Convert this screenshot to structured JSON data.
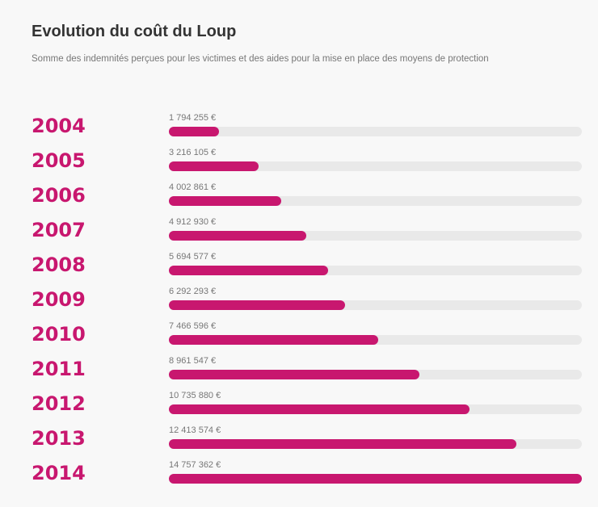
{
  "header": {
    "title": "Evolution du coût du Loup",
    "subtitle": "Somme des indemnités perçues pour les victimes et des aides pour la mise en place des moyens de protection"
  },
  "colors": {
    "bar": "#c8176f",
    "track": "#e9e9e9",
    "year": "#c8176f"
  },
  "chart_data": {
    "type": "bar",
    "orientation": "horizontal",
    "title": "Evolution du coût du Loup",
    "subtitle": "Somme des indemnités perçues pour les victimes et des aides pour la mise en place des moyens de protection",
    "categories": [
      "2004",
      "2005",
      "2006",
      "2007",
      "2008",
      "2009",
      "2010",
      "2011",
      "2012",
      "2013",
      "2014"
    ],
    "values": [
      1794255,
      3216105,
      4002861,
      4912930,
      5694577,
      6292293,
      7466596,
      8961547,
      10735880,
      12413574,
      14757362
    ],
    "labels": [
      "1 794 255 €",
      "3 216 105 €",
      "4 002 861 €",
      "4 912 930 €",
      "5 694 577 €",
      "6 292 293 €",
      "7 466 596 €",
      "8 961 547 €",
      "10 735 880 €",
      "12 413 574 €",
      "14 757 362 €"
    ],
    "xlim": [
      0,
      14757362
    ],
    "grid": false
  }
}
